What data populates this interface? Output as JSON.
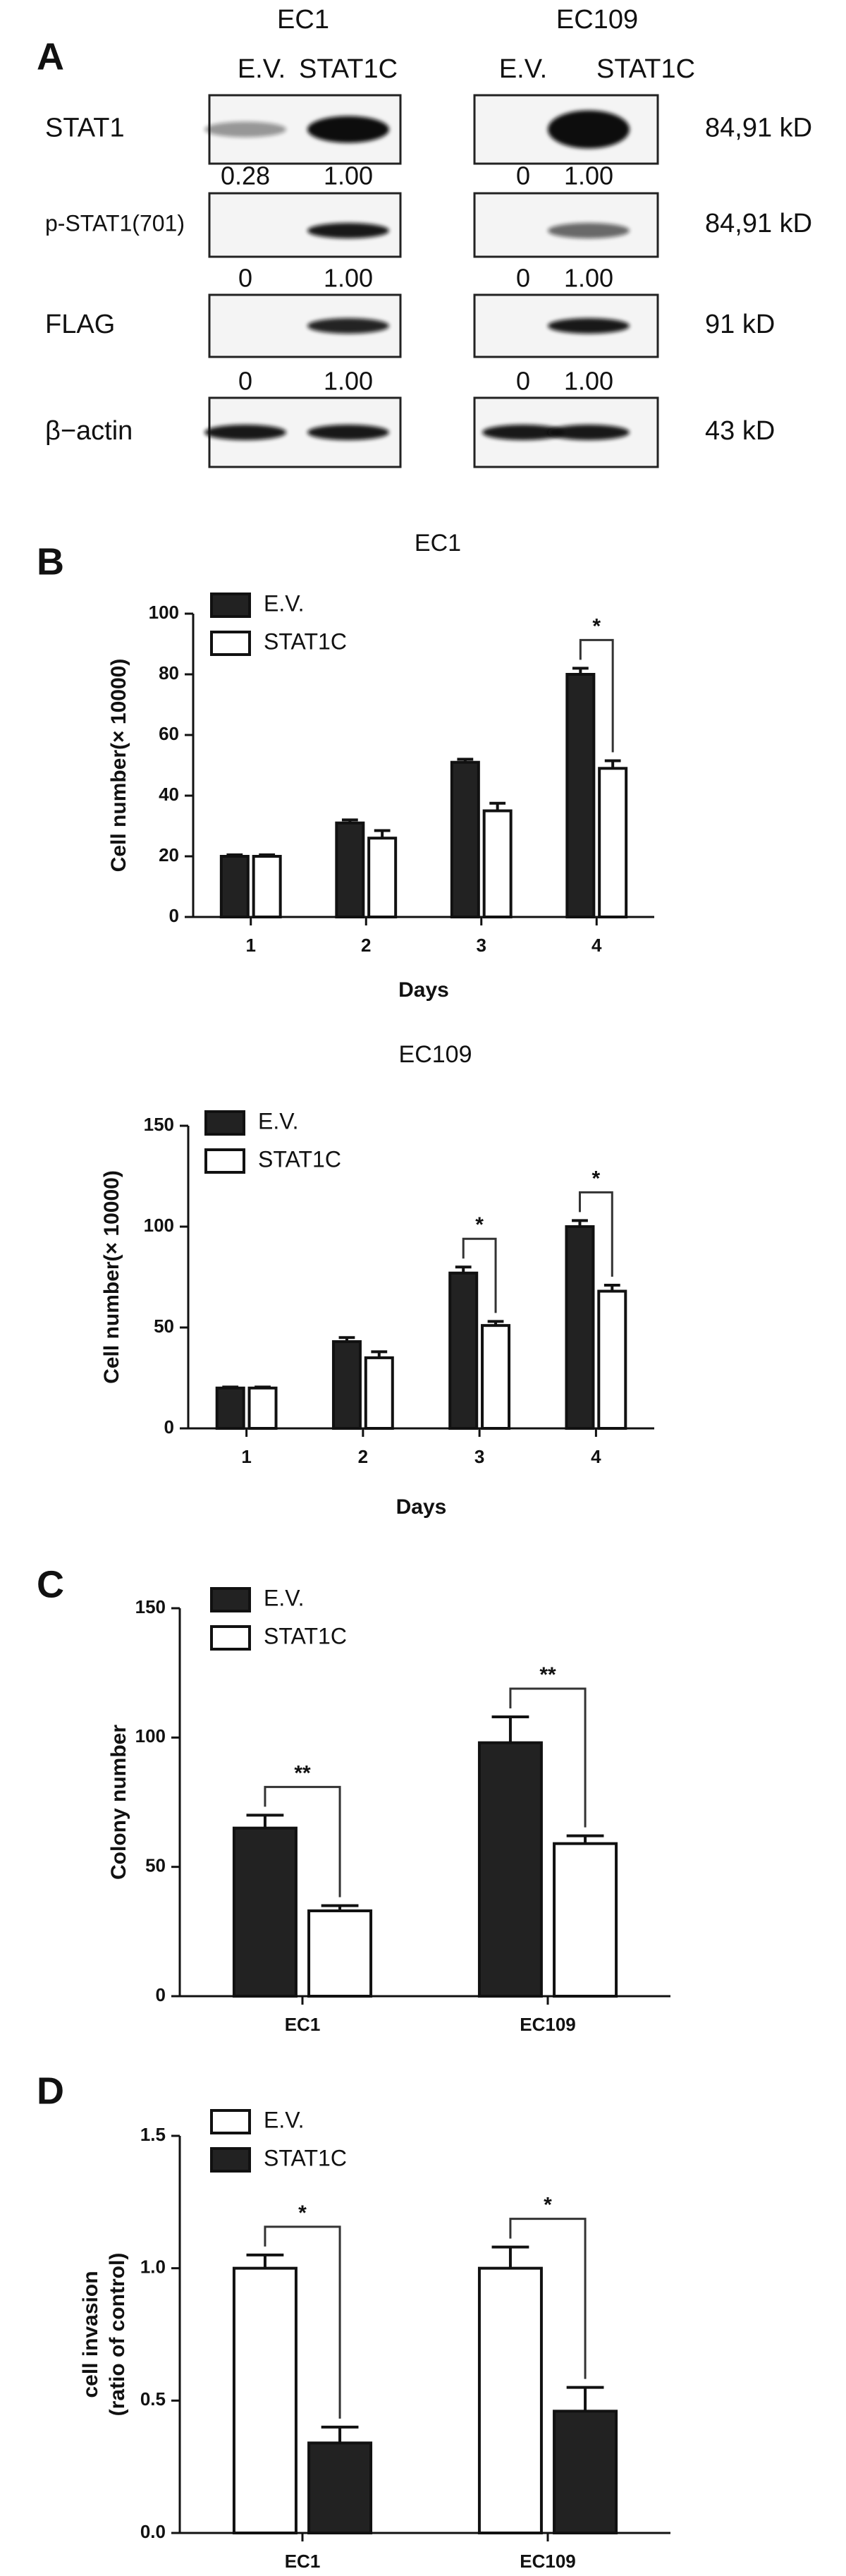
{
  "panel_a": {
    "panel_label": "A",
    "groups": [
      {
        "name": "EC1",
        "lanes": [
          "E.V.",
          "STAT1C"
        ]
      },
      {
        "name": "EC109",
        "lanes": [
          "E.V.",
          "STAT1C"
        ]
      }
    ],
    "rows": [
      {
        "name": "STAT1",
        "size": "84,91 kD",
        "quant": [
          [
            "0.28",
            "1.00"
          ],
          [
            "0",
            "1.00"
          ]
        ]
      },
      {
        "name": "p-STAT1(701)",
        "size": "84,91 kD",
        "quant": [
          [
            "0",
            "1.00"
          ],
          [
            "0",
            "1.00"
          ]
        ]
      },
      {
        "name": "FLAG",
        "size": "91 kD",
        "quant": [
          [
            "0",
            "1.00"
          ],
          [
            "0",
            "1.00"
          ]
        ]
      },
      {
        "name": "β−actin",
        "size": "43 kD"
      }
    ]
  },
  "chart_data": [
    {
      "type": "bar",
      "panel_label": "B",
      "title": "EC1",
      "xlabel": "Days",
      "ylabel": "Cell number(× 10000)",
      "categories": [
        "1",
        "2",
        "3",
        "4"
      ],
      "series": [
        {
          "name": "E.V.",
          "color": "#222222",
          "values": [
            20,
            31,
            51,
            80
          ],
          "errors": [
            0.5,
            1,
            1,
            2
          ]
        },
        {
          "name": "STAT1C",
          "color": "#ffffff",
          "values": [
            20,
            26,
            35,
            49
          ],
          "errors": [
            0.5,
            2.5,
            2.5,
            2.5
          ]
        }
      ],
      "significance": [
        null,
        null,
        null,
        "*"
      ],
      "ylim": [
        0,
        100
      ],
      "yticks": [
        0,
        20,
        40,
        60,
        80,
        100
      ],
      "legend": "upper left"
    },
    {
      "type": "bar",
      "title": "EC109",
      "xlabel": "Days",
      "ylabel": "Cell number(× 10000)",
      "categories": [
        "1",
        "2",
        "3",
        "4"
      ],
      "series": [
        {
          "name": "E.V.",
          "color": "#222222",
          "values": [
            20,
            43,
            77,
            100
          ],
          "errors": [
            0.5,
            2,
            3,
            3
          ]
        },
        {
          "name": "STAT1C",
          "color": "#ffffff",
          "values": [
            20,
            35,
            51,
            68
          ],
          "errors": [
            0.5,
            3,
            2,
            3
          ]
        }
      ],
      "significance": [
        null,
        null,
        "*",
        "*"
      ],
      "ylim": [
        0,
        150
      ],
      "yticks": [
        0,
        50,
        100,
        150
      ],
      "legend": "upper left"
    },
    {
      "type": "bar",
      "panel_label": "C",
      "ylabel": "Colony number",
      "categories": [
        "EC1",
        "EC109"
      ],
      "series": [
        {
          "name": "E.V.",
          "color": "#222222",
          "values": [
            65,
            98
          ],
          "errors": [
            5,
            10
          ]
        },
        {
          "name": "STAT1C",
          "color": "#ffffff",
          "values": [
            33,
            59
          ],
          "errors": [
            2,
            3
          ]
        }
      ],
      "significance": [
        "**",
        "**"
      ],
      "ylim": [
        0,
        150
      ],
      "yticks": [
        0,
        50,
        100,
        150
      ],
      "legend": "upper left"
    },
    {
      "type": "bar",
      "panel_label": "D",
      "ylabel": [
        "cell invasion",
        "(ratio of control)"
      ],
      "categories": [
        "EC1",
        "EC109"
      ],
      "series": [
        {
          "name": "E.V.",
          "color": "#ffffff",
          "values": [
            1.0,
            1.0
          ],
          "errors": [
            0.05,
            0.08
          ]
        },
        {
          "name": "STAT1C",
          "color": "#222222",
          "values": [
            0.34,
            0.46
          ],
          "errors": [
            0.06,
            0.09
          ]
        }
      ],
      "significance": [
        "*",
        "*"
      ],
      "ylim": [
        0,
        1.5
      ],
      "yticks": [
        {
          "value": 0,
          "label": "0.0"
        },
        0.5,
        {
          "value": 1,
          "label": "1.0"
        },
        1.5
      ],
      "legend": "upper left"
    }
  ]
}
